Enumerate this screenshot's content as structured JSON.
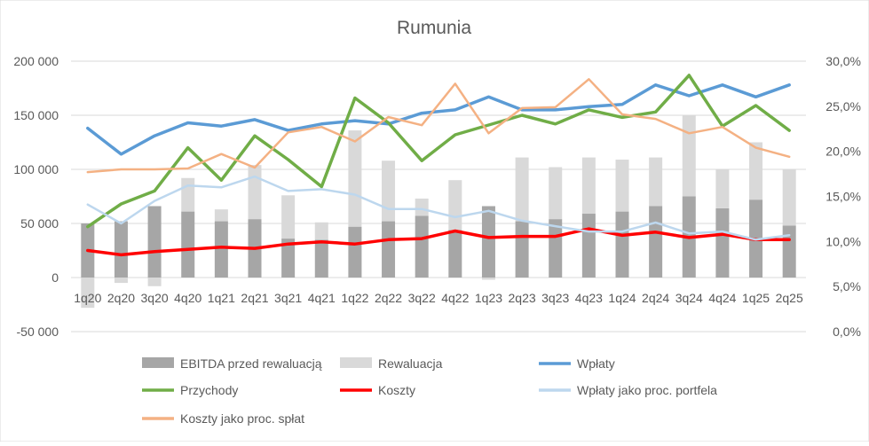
{
  "chart_data": {
    "type": "bar+line",
    "title": "Rumunia",
    "categories": [
      "1q20",
      "2q20",
      "3q20",
      "4q20",
      "1q21",
      "2q21",
      "3q21",
      "4q21",
      "1q22",
      "2q22",
      "3q22",
      "4q22",
      "1q23",
      "2q23",
      "3q23",
      "4q23",
      "1q24",
      "2q24",
      "3q24",
      "4q24",
      "1q25",
      "2q25"
    ],
    "y_left": {
      "ylim": [
        -50000,
        200000
      ],
      "ticks": [
        -50000,
        0,
        50000,
        100000,
        150000,
        200000
      ],
      "tick_labels": [
        "-50 000",
        "0",
        "50 000",
        "100 000",
        "150 000",
        "200 000"
      ]
    },
    "y_right": {
      "ylim": [
        0,
        30
      ],
      "ticks": [
        0,
        5,
        10,
        15,
        20,
        25,
        30
      ],
      "tick_labels": [
        "0,0%",
        "5,0%",
        "10,0%",
        "15,0%",
        "20,0%",
        "25,0%",
        "30,0%"
      ]
    },
    "grid": true,
    "legend_position": "bottom",
    "bar_series": [
      {
        "name": "EBITDA przed rewaluacją",
        "color": "#a6a6a6",
        "values": [
          50000,
          52000,
          66000,
          61000,
          52000,
          54000,
          36000,
          35000,
          47000,
          52000,
          57000,
          44000,
          66000,
          52000,
          54000,
          59000,
          61000,
          66000,
          75000,
          64000,
          72000,
          48000
        ]
      },
      {
        "name": "Rewaluacja",
        "color": "#d9d9d9",
        "values": [
          -28000,
          -5000,
          -8000,
          31000,
          11000,
          50000,
          40000,
          16000,
          89000,
          56000,
          16000,
          46000,
          -2000,
          59000,
          48000,
          52000,
          48000,
          45000,
          75000,
          36000,
          53000,
          52000
        ]
      }
    ],
    "line_series": [
      {
        "name": "Wpłaty",
        "axis": "left",
        "color": "#5b9bd5",
        "width": 3.5,
        "values": [
          138000,
          114000,
          131000,
          143000,
          140000,
          146000,
          136000,
          142000,
          145000,
          142000,
          152000,
          155000,
          167000,
          155000,
          155000,
          158000,
          160000,
          178000,
          168000,
          178000,
          167000,
          178000
        ]
      },
      {
        "name": "Przychody",
        "axis": "left",
        "color": "#70ad47",
        "width": 3.5,
        "values": [
          47000,
          68000,
          80000,
          120000,
          90000,
          131000,
          109000,
          84000,
          166000,
          143000,
          108000,
          132000,
          141000,
          150000,
          142000,
          155000,
          148000,
          153000,
          187000,
          140000,
          159000,
          136000
        ]
      },
      {
        "name": "Koszty",
        "axis": "left",
        "color": "#ff0000",
        "width": 3.5,
        "values": [
          25000,
          21000,
          24000,
          26000,
          28000,
          27000,
          31000,
          33000,
          31000,
          35000,
          36000,
          43000,
          37000,
          38000,
          38000,
          45000,
          39000,
          42000,
          37000,
          40000,
          35000,
          35000
        ]
      },
      {
        "name": "Wpłaty jako proc. portfela",
        "axis": "right",
        "color": "#bdd7ee",
        "width": 2.5,
        "values": [
          14.1,
          12.0,
          14.5,
          16.2,
          16.0,
          17.2,
          15.6,
          15.8,
          15.2,
          13.6,
          13.6,
          12.7,
          13.4,
          12.3,
          11.7,
          11.1,
          11.1,
          12.1,
          10.9,
          11.1,
          10.2,
          10.7
        ]
      },
      {
        "name": "Koszty jako proc. spłat",
        "axis": "right",
        "color": "#f4b183",
        "width": 2.5,
        "values": [
          17.7,
          18.0,
          18.0,
          18.1,
          19.7,
          18.2,
          22.1,
          22.7,
          21.1,
          23.8,
          22.9,
          27.5,
          22.0,
          24.8,
          24.9,
          28.0,
          24.1,
          23.6,
          22.0,
          22.7,
          20.4,
          19.4
        ]
      }
    ]
  }
}
